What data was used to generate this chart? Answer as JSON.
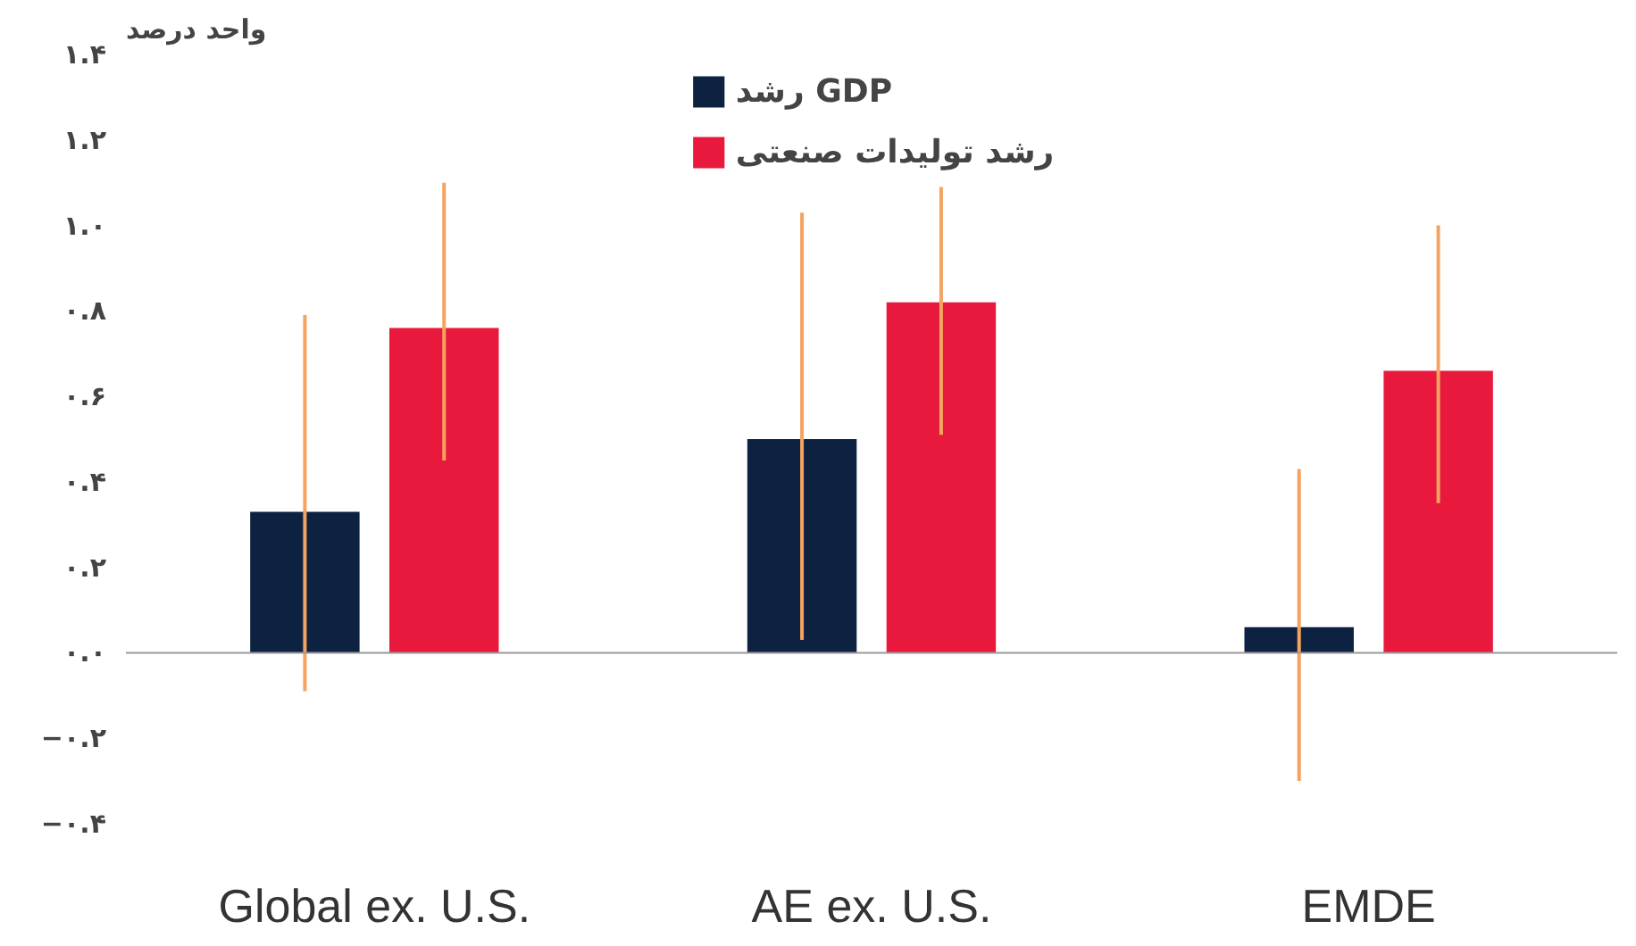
{
  "chart_data": {
    "type": "bar",
    "ylabel": "واحد درصد",
    "categories": [
      "Global ex. U.S.",
      "AE ex. U.S.",
      "EMDE"
    ],
    "series": [
      {
        "name": "رشد GDP",
        "color": "#0d2240",
        "values": [
          0.33,
          0.5,
          0.06
        ],
        "errors": [
          [
            -0.09,
            0.79
          ],
          [
            0.03,
            1.03
          ],
          [
            -0.3,
            0.43
          ]
        ]
      },
      {
        "name": "رشد تولیدات صنعتی",
        "color": "#e8193c",
        "values": [
          0.76,
          0.82,
          0.66
        ],
        "errors": [
          [
            0.45,
            1.1
          ],
          [
            0.51,
            1.09
          ],
          [
            0.35,
            1.0
          ]
        ]
      }
    ],
    "ylim": [
      -0.4,
      1.4
    ],
    "ref_lines": [
      {
        "axis": "y",
        "value": 0,
        "color": "#999999"
      }
    ],
    "yticks": [
      {
        "value": -0.4,
        "label": "−۰.۴"
      },
      {
        "value": -0.2,
        "label": "−۰.۲"
      },
      {
        "value": 0,
        "label": "۰.۰"
      },
      {
        "value": 0.2,
        "label": "۰.۲"
      },
      {
        "value": 0.4,
        "label": "۰.۴"
      },
      {
        "value": 0.6,
        "label": "۰.۶"
      },
      {
        "value": 0.8,
        "label": "۰.۸"
      },
      {
        "value": 1.0,
        "label": "۱.۰"
      },
      {
        "value": 1.2,
        "label": "۱.۲"
      },
      {
        "value": 1.4,
        "label": "۱.۴"
      }
    ],
    "grid": false,
    "legend": "top"
  }
}
